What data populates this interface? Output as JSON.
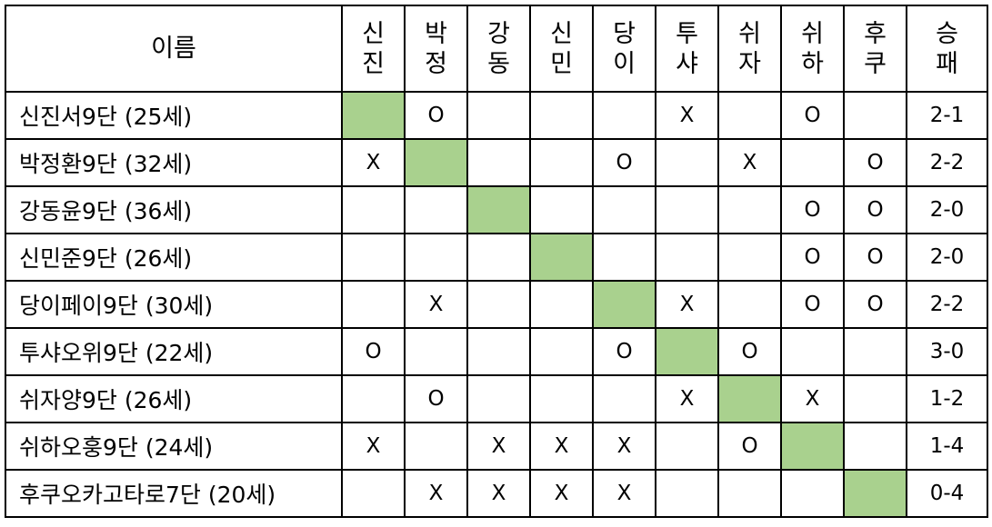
{
  "diagonal_color": "#a9d18e",
  "header": {
    "name": "이름",
    "opponents": [
      [
        "신",
        "진"
      ],
      [
        "박",
        "정"
      ],
      [
        "강",
        "동"
      ],
      [
        "신",
        "민"
      ],
      [
        "당",
        "이"
      ],
      [
        "투",
        "샤"
      ],
      [
        "쉬",
        "자"
      ],
      [
        "쉬",
        "하"
      ],
      [
        "후",
        "쿠"
      ]
    ],
    "record": [
      "승",
      "패"
    ]
  },
  "rows": [
    {
      "name": "신진서9단 (25세)",
      "results": [
        null,
        "O",
        "",
        "",
        "",
        "X",
        "",
        "O",
        ""
      ],
      "record": "2-1"
    },
    {
      "name": "박정환9단 (32세)",
      "results": [
        "X",
        null,
        "",
        "",
        "O",
        "",
        "X",
        "",
        "O"
      ],
      "record": "2-2"
    },
    {
      "name": "강동윤9단 (36세)",
      "results": [
        "",
        "",
        null,
        "",
        "",
        "",
        "",
        "O",
        "O"
      ],
      "record": "2-0"
    },
    {
      "name": "신민준9단 (26세)",
      "results": [
        "",
        "",
        "",
        null,
        "",
        "",
        "",
        "O",
        "O"
      ],
      "record": "2-0"
    },
    {
      "name": "당이페이9단 (30세)",
      "results": [
        "",
        "X",
        "",
        "",
        null,
        "X",
        "",
        "O",
        "O"
      ],
      "record": "2-2"
    },
    {
      "name": "투샤오위9단 (22세)",
      "results": [
        "O",
        "",
        "",
        "",
        "O",
        null,
        "O",
        "",
        ""
      ],
      "record": "3-0"
    },
    {
      "name": "쉬자양9단 (26세)",
      "results": [
        "",
        "O",
        "",
        "",
        "",
        "X",
        null,
        "X",
        ""
      ],
      "record": "1-2"
    },
    {
      "name": "쉬하오훙9단 (24세)",
      "results": [
        "X",
        "",
        "X",
        "X",
        "X",
        "",
        "O",
        null,
        ""
      ],
      "record": "1-4"
    },
    {
      "name": "후쿠오카고타로7단 (20세)",
      "results": [
        "",
        "X",
        "X",
        "X",
        "X",
        "",
        "",
        "",
        null
      ],
      "record": "0-4"
    }
  ]
}
